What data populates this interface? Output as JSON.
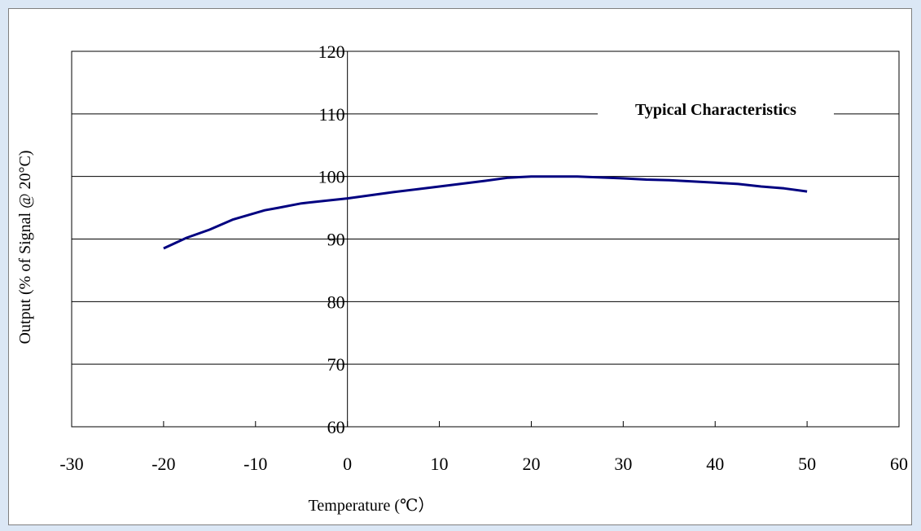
{
  "chart_data": {
    "type": "line",
    "title": "Typical Characteristics",
    "xlabel": "Temperature (℃）",
    "ylabel": "Output (% of  Signal @ 20°C)",
    "xlim": [
      -30,
      60
    ],
    "ylim": [
      60,
      120
    ],
    "x_ticks": [
      "-30",
      "-20",
      "-10",
      "0",
      "10",
      "20",
      "30",
      "40",
      "50",
      "60"
    ],
    "y_ticks": [
      "60",
      "70",
      "80",
      "90",
      "100",
      "110",
      "120"
    ],
    "grid": "horizontal",
    "legend": "none",
    "colors": {
      "series": "#000080",
      "grid": "#000000",
      "frame_bg": "#dbe7f5"
    },
    "series": [
      {
        "x": [
          -20,
          -17.5,
          -15,
          -12.5,
          -9,
          -7.5,
          -5,
          -2.5,
          0,
          5,
          10,
          15,
          17.5,
          20,
          25,
          30,
          32.5,
          35,
          40,
          42.5,
          45,
          47.5,
          50
        ],
        "values": [
          88.5,
          90.2,
          91.5,
          93.1,
          94.6,
          95.0,
          95.7,
          96.1,
          96.5,
          97.5,
          98.4,
          99.3,
          99.8,
          100.0,
          100.0,
          99.7,
          99.5,
          99.4,
          99.0,
          98.8,
          98.4,
          98.1,
          97.6
        ]
      }
    ]
  }
}
